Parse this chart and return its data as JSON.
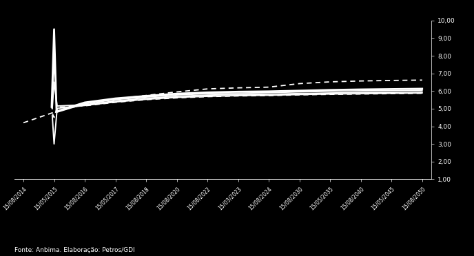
{
  "background_color": "#000000",
  "text_color": "#ffffff",
  "ylim": [
    1.0,
    10.0
  ],
  "yticks": [
    1.0,
    2.0,
    3.0,
    4.0,
    5.0,
    6.0,
    7.0,
    8.0,
    9.0,
    10.0
  ],
  "ytick_labels": [
    "1,00",
    "2,00",
    "3,00",
    "4,00",
    "5,00",
    "6,00",
    "7,00",
    "8,00",
    "9,00",
    "10,00"
  ],
  "xtick_labels": [
    "15/08/2014",
    "15/05/2015",
    "15/08/2016",
    "15/05/2017",
    "15/08/2018",
    "15/08/2020",
    "15/08/2022",
    "15/03/2023",
    "15/08/2024",
    "15/08/2030",
    "15/05/2035",
    "15/08/2040",
    "15/05/2045",
    "15/08/2050"
  ],
  "footnote": "Fonte: Anbima. Elaboração: Petros/GDI",
  "dez13_x": [
    0,
    1,
    2,
    3,
    4,
    5,
    6,
    7,
    8,
    9,
    10,
    11,
    12,
    13
  ],
  "dez13_y": [
    4.2,
    4.8,
    5.25,
    5.55,
    5.75,
    5.95,
    6.12,
    6.18,
    6.22,
    6.42,
    6.52,
    6.57,
    6.6,
    6.62
  ],
  "mai14_x": [
    0.92,
    1.0,
    1.08,
    2,
    3,
    4,
    5,
    6,
    7,
    8,
    9,
    10,
    11,
    12,
    13
  ],
  "mai14_y": [
    5.1,
    9.5,
    4.85,
    5.35,
    5.58,
    5.72,
    5.85,
    5.92,
    5.96,
    5.98,
    6.02,
    6.06,
    6.09,
    6.11,
    6.13
  ],
  "jul14_x": [
    0.93,
    1.0,
    1.09,
    2,
    3,
    4,
    5,
    6,
    7,
    8,
    9,
    10,
    11,
    12,
    13
  ],
  "jul14_y": [
    5.05,
    7.8,
    4.8,
    5.28,
    5.52,
    5.66,
    5.78,
    5.85,
    5.88,
    5.91,
    5.95,
    5.99,
    6.01,
    6.03,
    6.05
  ],
  "ago14_x": [
    0.94,
    1.0,
    1.1,
    2,
    3,
    4,
    5,
    6,
    7,
    8,
    9,
    10,
    11,
    12,
    13
  ],
  "ago14_y": [
    5.0,
    6.5,
    5.15,
    5.22,
    5.44,
    5.59,
    5.7,
    5.77,
    5.8,
    5.82,
    5.86,
    5.89,
    5.91,
    5.93,
    5.95
  ],
  "set14_x": [
    0.94,
    1.0,
    1.1,
    2,
    3,
    4,
    5,
    6,
    7,
    8,
    9,
    10,
    11,
    12,
    13
  ],
  "set14_y": [
    4.6,
    3.0,
    5.02,
    5.18,
    5.38,
    5.53,
    5.64,
    5.7,
    5.74,
    5.76,
    5.8,
    5.83,
    5.85,
    5.87,
    5.89
  ],
  "out14_x": [
    0.95,
    1.0,
    1.1,
    2,
    3,
    4,
    5,
    6,
    7,
    8,
    9,
    10,
    11,
    12,
    13
  ],
  "out14_y": [
    4.7,
    4.5,
    5.08,
    5.16,
    5.36,
    5.51,
    5.61,
    5.68,
    5.72,
    5.74,
    5.78,
    5.81,
    5.83,
    5.85,
    5.87
  ]
}
